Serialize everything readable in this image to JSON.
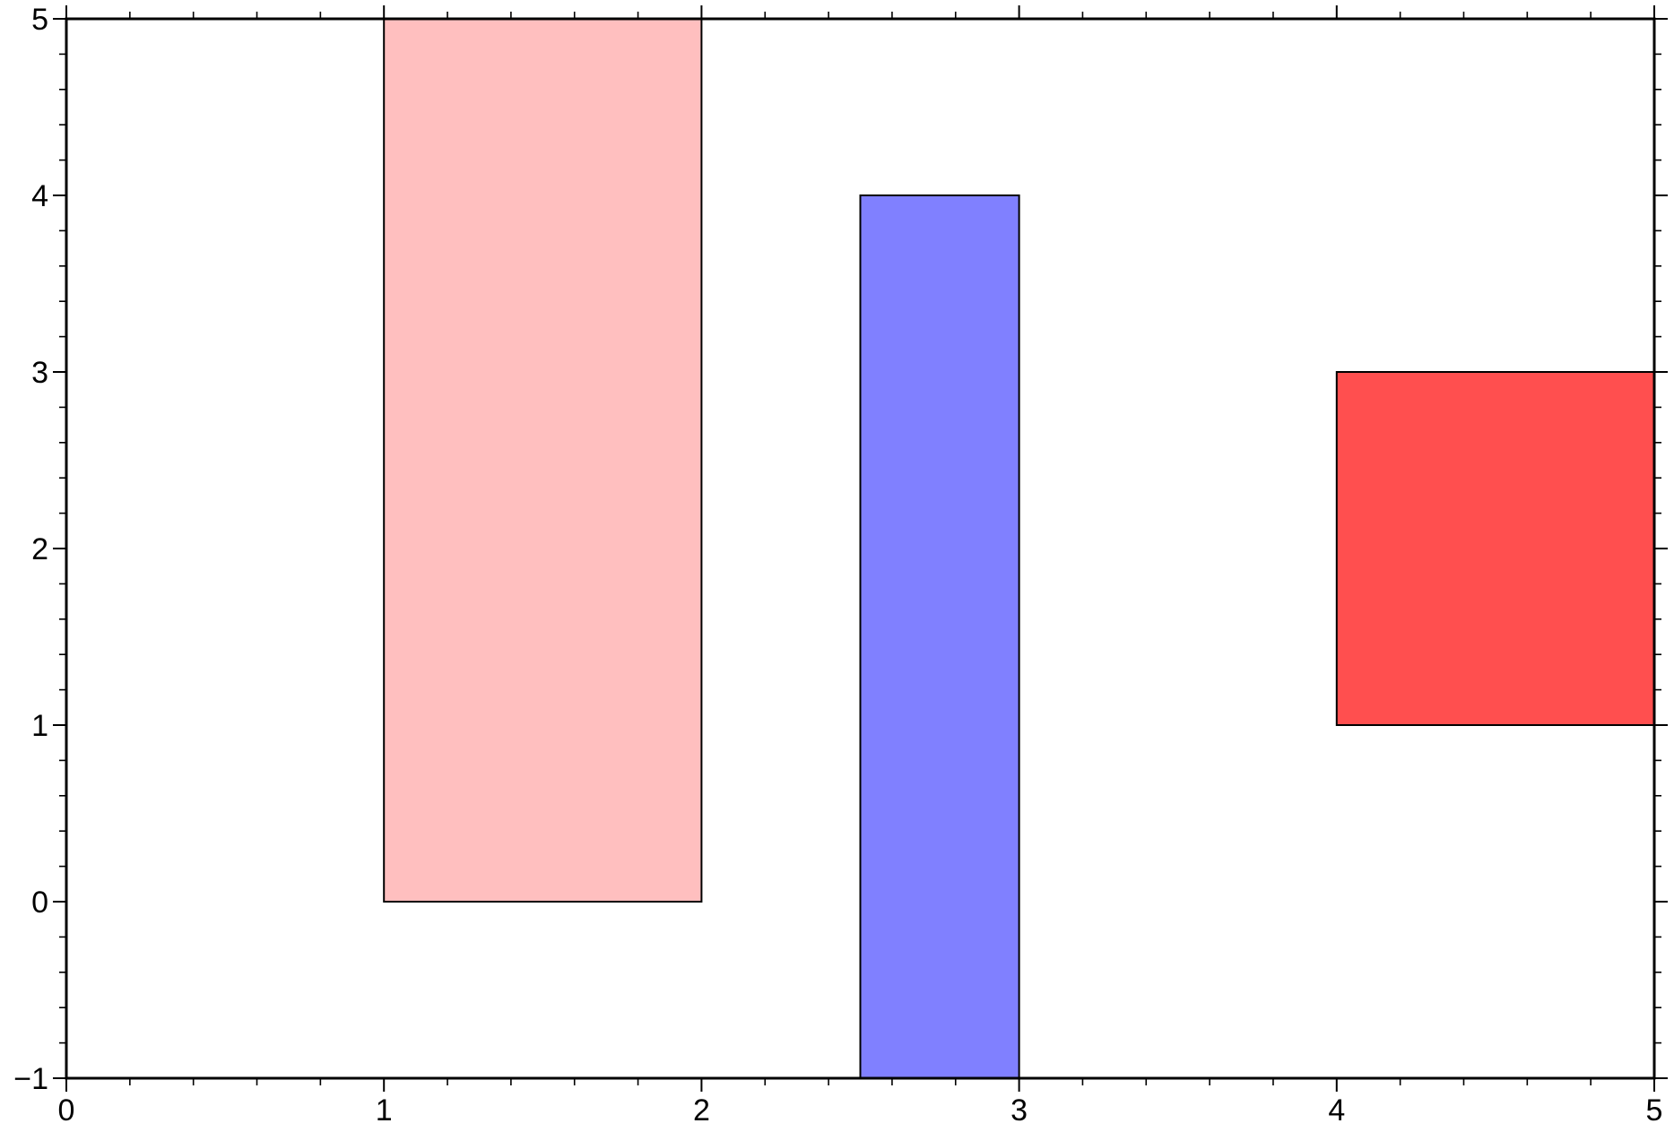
{
  "chart_data": {
    "type": "bar",
    "title": "",
    "xlabel": "",
    "ylabel": "",
    "xlim": [
      0,
      5
    ],
    "ylim": [
      -1,
      5
    ],
    "x_ticks": [
      0,
      1,
      2,
      3,
      4,
      5
    ],
    "x_tick_labels": [
      "0",
      "1",
      "2",
      "3",
      "4",
      "5"
    ],
    "y_ticks": [
      -1,
      0,
      1,
      2,
      3,
      4,
      5
    ],
    "y_tick_labels": [
      "−1",
      "0",
      "1",
      "2",
      "3",
      "4",
      "5"
    ],
    "x_minor_step": 0.2,
    "y_minor_step": 0.2,
    "grid": false,
    "frame": "all sides with ticks",
    "bars": [
      {
        "x0": 1,
        "x1": 2,
        "y0": 0,
        "y1": 5,
        "color": "#ffbfbf"
      },
      {
        "x0": 2.5,
        "x1": 3,
        "y0": -1,
        "y1": 4,
        "color": "#8080ff"
      },
      {
        "x0": 4,
        "x1": 5,
        "y0": 1,
        "y1": 3,
        "color": "#ff4f4f"
      }
    ]
  },
  "colors": {
    "frame": "#000000",
    "bar_edge": "#000000",
    "background": "#ffffff"
  }
}
